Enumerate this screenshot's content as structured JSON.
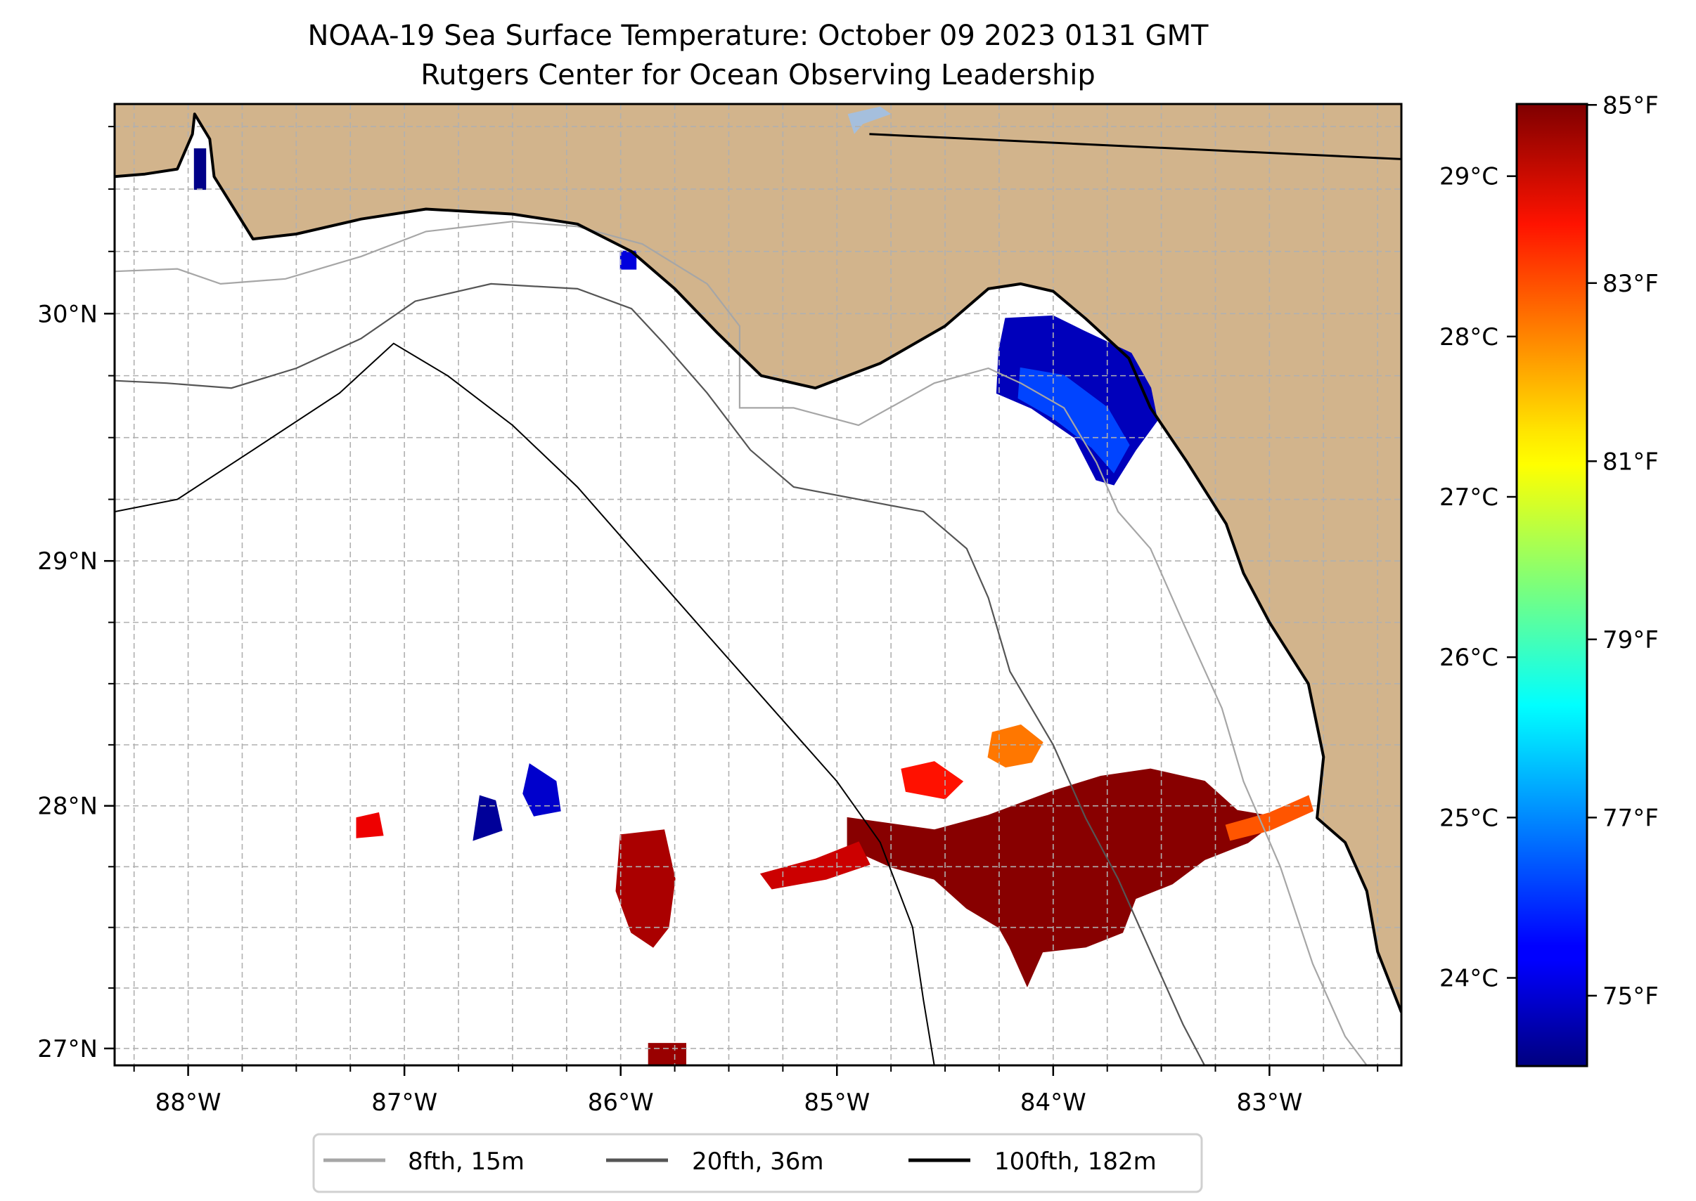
{
  "chart_data": {
    "type": "heatmap",
    "title": "NOAA-19 Sea Surface Temperature: October 09 2023 0131 GMT",
    "subtitle": "Rutgers Center for Ocean Observing Leadership",
    "xlabel": "",
    "ylabel": "",
    "xlim": [
      -88.34,
      -82.39
    ],
    "ylim": [
      26.93,
      30.84
    ],
    "grid": true,
    "x_ticks": [
      {
        "value": -88,
        "label": "88°W"
      },
      {
        "value": -87,
        "label": "87°W"
      },
      {
        "value": -86,
        "label": "86°W"
      },
      {
        "value": -85,
        "label": "85°W"
      },
      {
        "value": -84,
        "label": "84°W"
      },
      {
        "value": -83,
        "label": "83°W"
      }
    ],
    "y_ticks": [
      {
        "value": 27,
        "label": "27°N"
      },
      {
        "value": 28,
        "label": "28°N"
      },
      {
        "value": 29,
        "label": "29°N"
      },
      {
        "value": 30,
        "label": "30°N"
      }
    ],
    "minor_tick_step": 0.25,
    "colorbar": {
      "colormap": "jet",
      "range_c": [
        23.45,
        29.45
      ],
      "ticks_c": [
        {
          "value": 24,
          "label": "24°C"
        },
        {
          "value": 25,
          "label": "25°C"
        },
        {
          "value": 26,
          "label": "26°C"
        },
        {
          "value": 27,
          "label": "27°C"
        },
        {
          "value": 28,
          "label": "28°C"
        },
        {
          "value": 29,
          "label": "29°C"
        }
      ],
      "ticks_f": [
        {
          "value": 75,
          "label": "75°F"
        },
        {
          "value": 77,
          "label": "77°F"
        },
        {
          "value": 79,
          "label": "79°F"
        },
        {
          "value": 81,
          "label": "81°F"
        },
        {
          "value": 83,
          "label": "83°F"
        },
        {
          "value": 85,
          "label": "85°F"
        }
      ]
    },
    "legend": {
      "placement": "bottom-center",
      "entries": [
        {
          "label": "8fth, 15m",
          "color": "#a6a6a6"
        },
        {
          "label": "20fth, 36m",
          "color": "#555555"
        },
        {
          "label": "100fth, 182m",
          "color": "#000000"
        }
      ]
    },
    "colors": {
      "land": "#d2b48c",
      "ocean": "#ffffff",
      "lake": "#a5bfdd",
      "grid": "#b0b0b0",
      "coast": "#000000"
    },
    "sst_patches": [
      {
        "name": "apalachee-bay-cool",
        "temp_c": 23.8,
        "polygon": [
          [
            -84.22,
            29.98
          ],
          [
            -84.0,
            29.99
          ],
          [
            -83.86,
            29.93
          ],
          [
            -83.64,
            29.84
          ],
          [
            -83.55,
            29.7
          ],
          [
            -83.52,
            29.57
          ],
          [
            -83.62,
            29.45
          ],
          [
            -83.72,
            29.31
          ],
          [
            -83.8,
            29.33
          ],
          [
            -83.9,
            29.5
          ],
          [
            -84.1,
            29.62
          ],
          [
            -84.26,
            29.68
          ],
          [
            -84.25,
            29.85
          ]
        ]
      },
      {
        "name": "apalachee-bay-core",
        "temp_c": 24.6,
        "polygon": [
          [
            -84.15,
            29.78
          ],
          [
            -83.95,
            29.75
          ],
          [
            -83.75,
            29.62
          ],
          [
            -83.65,
            29.47
          ],
          [
            -83.72,
            29.36
          ],
          [
            -83.82,
            29.46
          ],
          [
            -84.0,
            29.58
          ],
          [
            -84.16,
            29.66
          ]
        ]
      },
      {
        "name": "main-warm-patch",
        "temp_c": 29.4,
        "polygon": [
          [
            -84.95,
            27.95
          ],
          [
            -84.55,
            27.9
          ],
          [
            -84.3,
            27.96
          ],
          [
            -84.0,
            28.06
          ],
          [
            -83.78,
            28.12
          ],
          [
            -83.55,
            28.15
          ],
          [
            -83.3,
            28.1
          ],
          [
            -83.15,
            27.98
          ],
          [
            -82.95,
            27.95
          ],
          [
            -83.1,
            27.85
          ],
          [
            -83.3,
            27.78
          ],
          [
            -83.45,
            27.68
          ],
          [
            -83.62,
            27.62
          ],
          [
            -83.68,
            27.48
          ],
          [
            -83.85,
            27.42
          ],
          [
            -84.05,
            27.4
          ],
          [
            -84.12,
            27.26
          ],
          [
            -84.2,
            27.42
          ],
          [
            -84.25,
            27.5
          ],
          [
            -84.4,
            27.58
          ],
          [
            -84.55,
            27.7
          ],
          [
            -84.75,
            27.75
          ],
          [
            -84.95,
            27.83
          ]
        ]
      },
      {
        "name": "warm-filament-west",
        "temp_c": 29.0,
        "polygon": [
          [
            -85.35,
            27.72
          ],
          [
            -85.1,
            27.78
          ],
          [
            -84.9,
            27.85
          ],
          [
            -84.85,
            27.76
          ],
          [
            -85.05,
            27.7
          ],
          [
            -85.3,
            27.66
          ]
        ]
      },
      {
        "name": "warm-band-east",
        "temp_c": 28.2,
        "polygon": [
          [
            -83.2,
            27.92
          ],
          [
            -83.0,
            27.97
          ],
          [
            -82.82,
            28.04
          ],
          [
            -82.8,
            27.98
          ],
          [
            -83.0,
            27.9
          ],
          [
            -83.18,
            27.86
          ]
        ]
      },
      {
        "name": "northern-warm-patch",
        "temp_c": 28.0,
        "polygon": [
          [
            -84.28,
            28.3
          ],
          [
            -84.15,
            28.33
          ],
          [
            -84.05,
            28.26
          ],
          [
            -84.1,
            28.18
          ],
          [
            -84.22,
            28.16
          ],
          [
            -84.3,
            28.2
          ]
        ]
      },
      {
        "name": "mid-warm-patch",
        "temp_c": 28.6,
        "polygon": [
          [
            -84.7,
            28.15
          ],
          [
            -84.55,
            28.18
          ],
          [
            -84.42,
            28.1
          ],
          [
            -84.5,
            28.03
          ],
          [
            -84.68,
            28.06
          ]
        ]
      },
      {
        "name": "west-warm-column",
        "temp_c": 29.2,
        "polygon": [
          [
            -86.0,
            27.88
          ],
          [
            -85.8,
            27.9
          ],
          [
            -85.75,
            27.7
          ],
          [
            -85.78,
            27.5
          ],
          [
            -85.85,
            27.42
          ],
          [
            -85.95,
            27.48
          ],
          [
            -86.02,
            27.65
          ]
        ]
      },
      {
        "name": "west-blue-patch",
        "temp_c": 23.9,
        "polygon": [
          [
            -86.42,
            28.17
          ],
          [
            -86.3,
            28.1
          ],
          [
            -86.28,
            27.98
          ],
          [
            -86.4,
            27.96
          ],
          [
            -86.45,
            28.05
          ]
        ]
      },
      {
        "name": "west-navy-streak",
        "temp_c": 23.6,
        "polygon": [
          [
            -86.65,
            28.04
          ],
          [
            -86.58,
            28.02
          ],
          [
            -86.55,
            27.9
          ],
          [
            -86.68,
            27.86
          ]
        ]
      },
      {
        "name": "red-dot-87w",
        "temp_c": 28.8,
        "polygon": [
          [
            -87.22,
            27.95
          ],
          [
            -87.12,
            27.97
          ],
          [
            -87.1,
            27.88
          ],
          [
            -87.22,
            27.87
          ]
        ]
      },
      {
        "name": "bottom-edge-patch",
        "temp_c": 29.3,
        "polygon": [
          [
            -85.87,
            27.02
          ],
          [
            -85.7,
            27.02
          ],
          [
            -85.7,
            26.93
          ],
          [
            -85.87,
            26.93
          ]
        ]
      },
      {
        "name": "north-small-patch",
        "temp_c": 24.0,
        "polygon": [
          [
            -86.0,
            30.25
          ],
          [
            -85.93,
            30.25
          ],
          [
            -85.93,
            30.18
          ],
          [
            -86.0,
            30.18
          ]
        ]
      },
      {
        "name": "mobile-bay-navy",
        "temp_c": 23.5,
        "polygon": [
          [
            -87.97,
            30.66
          ],
          [
            -87.92,
            30.66
          ],
          [
            -87.92,
            30.5
          ],
          [
            -87.97,
            30.5
          ]
        ]
      }
    ],
    "isobath_8fth": [
      [
        -88.34,
        30.17
      ],
      [
        -88.05,
        30.18
      ],
      [
        -87.85,
        30.12
      ],
      [
        -87.55,
        30.14
      ],
      [
        -87.2,
        30.23
      ],
      [
        -86.9,
        30.33
      ],
      [
        -86.5,
        30.37
      ],
      [
        -86.2,
        30.35
      ],
      [
        -85.9,
        30.28
      ],
      [
        -85.6,
        30.12
      ],
      [
        -85.45,
        29.95
      ],
      [
        -85.45,
        29.62
      ],
      [
        -85.2,
        29.62
      ],
      [
        -84.9,
        29.55
      ],
      [
        -84.55,
        29.72
      ],
      [
        -84.3,
        29.78
      ],
      [
        -84.15,
        29.72
      ],
      [
        -83.95,
        29.62
      ],
      [
        -83.8,
        29.4
      ],
      [
        -83.7,
        29.2
      ],
      [
        -83.55,
        29.05
      ],
      [
        -83.4,
        28.75
      ],
      [
        -83.22,
        28.4
      ],
      [
        -83.12,
        28.1
      ],
      [
        -82.95,
        27.75
      ],
      [
        -82.8,
        27.35
      ],
      [
        -82.65,
        27.05
      ],
      [
        -82.55,
        26.93
      ]
    ],
    "isobath_20fth": [
      [
        -88.34,
        29.73
      ],
      [
        -88.1,
        29.72
      ],
      [
        -87.8,
        29.7
      ],
      [
        -87.5,
        29.78
      ],
      [
        -87.2,
        29.9
      ],
      [
        -86.95,
        30.05
      ],
      [
        -86.6,
        30.12
      ],
      [
        -86.2,
        30.1
      ],
      [
        -85.95,
        30.02
      ],
      [
        -85.8,
        29.88
      ],
      [
        -85.6,
        29.68
      ],
      [
        -85.4,
        29.45
      ],
      [
        -85.2,
        29.3
      ],
      [
        -84.9,
        29.25
      ],
      [
        -84.6,
        29.2
      ],
      [
        -84.4,
        29.05
      ],
      [
        -84.3,
        28.85
      ],
      [
        -84.2,
        28.55
      ],
      [
        -84.0,
        28.25
      ],
      [
        -83.85,
        27.95
      ],
      [
        -83.7,
        27.7
      ],
      [
        -83.55,
        27.4
      ],
      [
        -83.4,
        27.1
      ],
      [
        -83.3,
        26.93
      ]
    ],
    "isobath_100fth": [
      [
        -88.34,
        29.2
      ],
      [
        -88.05,
        29.25
      ],
      [
        -87.7,
        29.45
      ],
      [
        -87.3,
        29.68
      ],
      [
        -87.05,
        29.88
      ],
      [
        -86.8,
        29.75
      ],
      [
        -86.5,
        29.55
      ],
      [
        -86.2,
        29.3
      ],
      [
        -85.9,
        29.0
      ],
      [
        -85.6,
        28.7
      ],
      [
        -85.3,
        28.4
      ],
      [
        -85.0,
        28.1
      ],
      [
        -84.8,
        27.85
      ],
      [
        -84.65,
        27.5
      ],
      [
        -84.6,
        27.2
      ],
      [
        -84.55,
        26.93
      ]
    ],
    "coastline": [
      [
        -88.34,
        30.55
      ],
      [
        -88.2,
        30.56
      ],
      [
        -88.05,
        30.58
      ],
      [
        -87.98,
        30.72
      ],
      [
        -87.97,
        30.8
      ],
      [
        -87.9,
        30.7
      ],
      [
        -87.88,
        30.55
      ],
      [
        -87.7,
        30.3
      ],
      [
        -87.5,
        30.32
      ],
      [
        -87.2,
        30.38
      ],
      [
        -86.9,
        30.42
      ],
      [
        -86.5,
        30.4
      ],
      [
        -86.2,
        30.36
      ],
      [
        -85.95,
        30.25
      ],
      [
        -85.75,
        30.1
      ],
      [
        -85.55,
        29.92
      ],
      [
        -85.35,
        29.75
      ],
      [
        -85.1,
        29.7
      ],
      [
        -84.8,
        29.8
      ],
      [
        -84.5,
        29.95
      ],
      [
        -84.3,
        30.1
      ],
      [
        -84.15,
        30.12
      ],
      [
        -84.0,
        30.09
      ],
      [
        -83.85,
        29.98
      ],
      [
        -83.65,
        29.82
      ],
      [
        -83.55,
        29.62
      ],
      [
        -83.38,
        29.4
      ],
      [
        -83.2,
        29.15
      ],
      [
        -83.12,
        28.95
      ],
      [
        -83.0,
        28.75
      ],
      [
        -82.82,
        28.5
      ],
      [
        -82.75,
        28.2
      ],
      [
        -82.78,
        27.95
      ],
      [
        -82.65,
        27.85
      ],
      [
        -82.55,
        27.65
      ],
      [
        -82.5,
        27.4
      ],
      [
        -82.39,
        27.15
      ],
      [
        -82.39,
        30.84
      ],
      [
        -88.34,
        30.84
      ]
    ],
    "state_border": [
      [
        -84.85,
        30.72
      ],
      [
        -82.39,
        30.62
      ]
    ],
    "lake": [
      [
        -84.95,
        30.8
      ],
      [
        -84.8,
        30.83
      ],
      [
        -84.75,
        30.8
      ],
      [
        -84.88,
        30.76
      ],
      [
        -84.92,
        30.72
      ]
    ]
  }
}
